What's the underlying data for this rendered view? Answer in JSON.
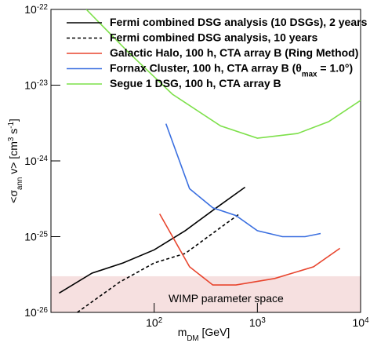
{
  "chart_data": {
    "type": "line",
    "x_label": "m_{DM} [GeV]",
    "y_label": "<σ_{ann} v> [cm^{3} s^{-1}]",
    "xscale": "log",
    "yscale": "log",
    "xlim": [
      10,
      10000
    ],
    "ylim": [
      1e-26,
      1e-22
    ],
    "xticks": [
      {
        "value": 100,
        "label": "10^{2}"
      },
      {
        "value": 1000,
        "label": "10^{3}"
      },
      {
        "value": 10000,
        "label": "10^{4}"
      }
    ],
    "yticks": [
      {
        "value": 1e-26,
        "label": "10^{-26}"
      },
      {
        "value": 1e-25,
        "label": "10^{-25}"
      },
      {
        "value": 1e-24,
        "label": "10^{-24}"
      },
      {
        "value": 1e-23,
        "label": "10^{-23}"
      },
      {
        "value": 1e-22,
        "label": "10^{-22}"
      }
    ],
    "legend": "upper left",
    "region": {
      "label": "WIMP parameter space",
      "y": [
        1e-26,
        3e-26
      ],
      "color": "#f6e0e0"
    },
    "series": [
      {
        "name": "Fermi combined DSG analysis (10 DSGs), 2 years",
        "color": "#000000",
        "dash": false,
        "x": [
          12,
          25,
          50,
          100,
          200,
          400,
          760
        ],
        "values": [
          1.8e-26,
          3.3e-26,
          4.5e-26,
          6.7e-26,
          1.2e-25,
          2.4e-25,
          4.5e-25
        ]
      },
      {
        "name": "Fermi combined DSG analysis, 10 years",
        "color": "#000000",
        "dash": true,
        "x": [
          18,
          46,
          100,
          200,
          400,
          670
        ],
        "values": [
          1e-26,
          2.5e-26,
          4.5e-26,
          6e-26,
          1.2e-25,
          2e-25
        ]
      },
      {
        "name": "Galactic Halo, 100 h, CTA array B (Ring Method)",
        "color": "#e8452e",
        "dash": false,
        "x": [
          113,
          220,
          370,
          620,
          1470,
          3500,
          6300
        ],
        "values": [
          2e-25,
          4e-26,
          2.3e-26,
          2.3e-26,
          2.8e-26,
          4e-26,
          7e-26
        ]
      },
      {
        "name": "Fornax Cluster, 100 h, CTA array B (θ_{max} = 1.0°)",
        "color": "#3a6fe0",
        "dash": false,
        "x": [
          130,
          220,
          370,
          620,
          1000,
          1750,
          2900,
          4100
        ],
        "values": [
          3.1e-24,
          4.3e-25,
          2.4e-25,
          1.9e-25,
          1.2e-25,
          1e-25,
          1e-25,
          1.1e-25
        ]
      },
      {
        "name": "Segue 1 DSG, 100 h, CTA array B",
        "color": "#7de04a",
        "dash": false,
        "x": [
          22,
          55,
          150,
          440,
          1000,
          2450,
          4900,
          10000
        ],
        "values": [
          1e-22,
          2.8e-23,
          7.6e-24,
          2.9e-24,
          2e-24,
          2.3e-24,
          3.3e-24,
          6.3e-24
        ]
      }
    ]
  }
}
